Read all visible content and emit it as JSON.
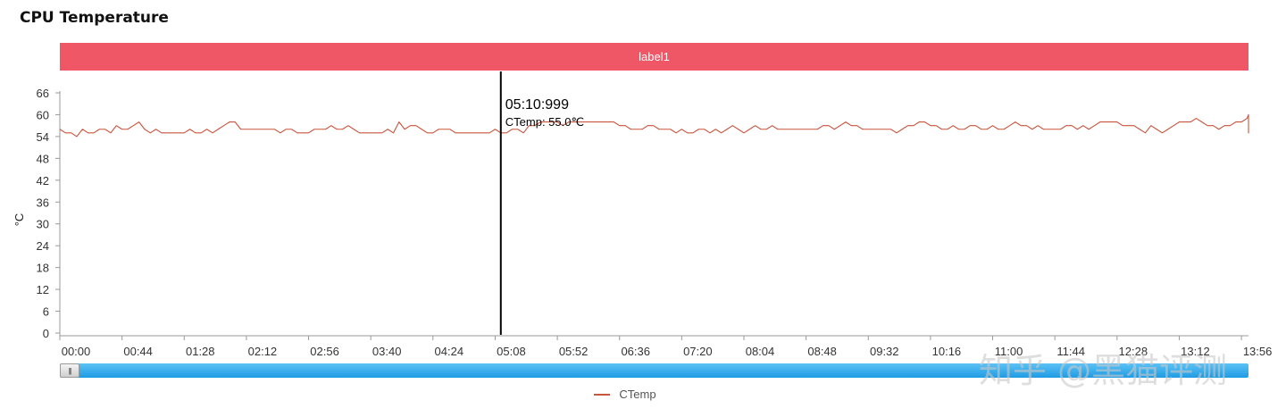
{
  "page": {
    "title": "CPU Temperature"
  },
  "label_bar": {
    "text": "label1",
    "color": "#ef5766"
  },
  "chart_data": {
    "type": "line",
    "title": "CPU Temperature",
    "ylabel": "°C",
    "xlabel": "",
    "ylim": [
      0,
      66
    ],
    "yticks": [
      0,
      6,
      12,
      18,
      24,
      30,
      36,
      42,
      48,
      54,
      60,
      66
    ],
    "xlim_seconds": [
      0,
      50460
    ],
    "xtick_labels": [
      "00:00",
      "00:44",
      "01:28",
      "02:12",
      "02:56",
      "03:40",
      "04:24",
      "05:08",
      "05:52",
      "06:36",
      "07:20",
      "08:04",
      "08:48",
      "09:32",
      "10:16",
      "11:00",
      "11:44",
      "12:28",
      "13:12",
      "13:56"
    ],
    "series": [
      {
        "name": "CTemp",
        "color": "#c8553d",
        "sample_interval_seconds": 240,
        "values": [
          56,
          55,
          55,
          54,
          56,
          55,
          55,
          56,
          56,
          55,
          57,
          56,
          56,
          57,
          58,
          56,
          55,
          56,
          55,
          55,
          55,
          55,
          55,
          56,
          55,
          55,
          56,
          55,
          56,
          57,
          58,
          58,
          56,
          56,
          56,
          56,
          56,
          56,
          56,
          55,
          56,
          56,
          55,
          55,
          55,
          56,
          56,
          56,
          57,
          56,
          56,
          57,
          56,
          55,
          55,
          55,
          55,
          55,
          56,
          55,
          58,
          56,
          57,
          57,
          56,
          55,
          55,
          56,
          56,
          56,
          55,
          55,
          55,
          55,
          55,
          55,
          55,
          56,
          55,
          55,
          56,
          56,
          55,
          57,
          57,
          58,
          58,
          58,
          58,
          57,
          58,
          58,
          58,
          58,
          58,
          58,
          58,
          58,
          58,
          57,
          57,
          56,
          56,
          56,
          57,
          57,
          56,
          56,
          56,
          55,
          56,
          55,
          55,
          56,
          56,
          55,
          56,
          55,
          56,
          57,
          56,
          55,
          56,
          57,
          56,
          56,
          57,
          56,
          56,
          56,
          56,
          56,
          56,
          56,
          56,
          57,
          57,
          56,
          57,
          58,
          57,
          57,
          56,
          56,
          56,
          56,
          56,
          56,
          55,
          56,
          57,
          57,
          58,
          58,
          57,
          57,
          56,
          56,
          57,
          56,
          56,
          57,
          57,
          56,
          56,
          57,
          56,
          56,
          57,
          58,
          57,
          57,
          56,
          57,
          56,
          56,
          56,
          56,
          57,
          57,
          56,
          57,
          56,
          57,
          58,
          58,
          58,
          58,
          57,
          57,
          57,
          56,
          55,
          57,
          56,
          55,
          56,
          57,
          58,
          58,
          58,
          59,
          58,
          57,
          57,
          56,
          57,
          57,
          58,
          58,
          59,
          60,
          59,
          59,
          58,
          58,
          57,
          57,
          56,
          56,
          56,
          57,
          58,
          58,
          58,
          59,
          59,
          58,
          57,
          59,
          60,
          60,
          58,
          56,
          55,
          56,
          57,
          57,
          56,
          55,
          56,
          57,
          58,
          58,
          59,
          60,
          59,
          59,
          58,
          57,
          56,
          56,
          57,
          58,
          58,
          57,
          56,
          57,
          58,
          59,
          59,
          60,
          59,
          58,
          58,
          56,
          56,
          57,
          58,
          59,
          60,
          60,
          59,
          60,
          59,
          58,
          58,
          58,
          58,
          59,
          60,
          56
        ],
        "hover_index": 78
      }
    ],
    "tooltip": {
      "time": "05:10:999",
      "text": "CTemp: 55.0℃"
    },
    "legend": {
      "position": "bottom-center",
      "entries": [
        "CTemp"
      ]
    }
  },
  "scrollbar": {
    "position": 0.0
  },
  "watermark": {
    "text": "知乎 @黑猫评测"
  }
}
